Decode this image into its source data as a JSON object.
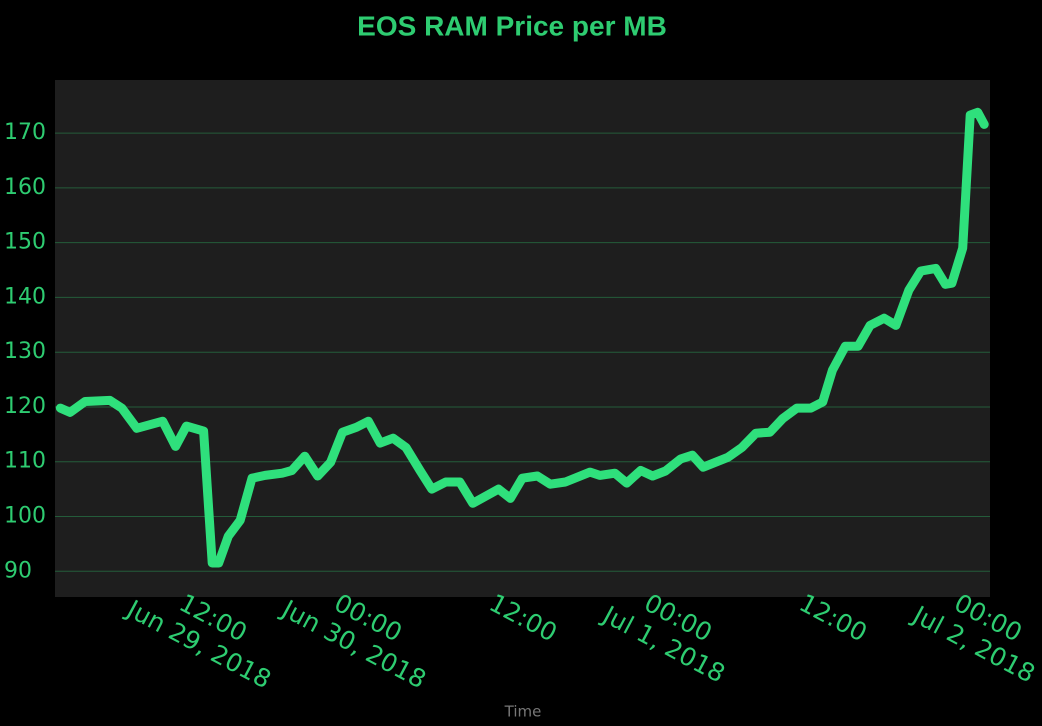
{
  "chart_data": {
    "type": "line",
    "title": "EOS RAM Price per MB",
    "x_label": "Time",
    "x": [
      "2018-06-29 00:15",
      "2018-06-29 01:00",
      "2018-06-29 02:10",
      "2018-06-29 04:05",
      "2018-06-29 05:00",
      "2018-06-29 06:10",
      "2018-06-29 08:10",
      "2018-06-29 09:10",
      "2018-06-29 10:00",
      "2018-06-29 11:20",
      "2018-06-29 12:00",
      "2018-06-29 12:30",
      "2018-06-29 13:15",
      "2018-06-29 14:10",
      "2018-06-29 15:05",
      "2018-06-29 16:05",
      "2018-06-29 17:25",
      "2018-06-29 18:10",
      "2018-06-29 19:10",
      "2018-06-29 20:10",
      "2018-06-29 21:10",
      "2018-06-29 22:05",
      "2018-06-29 23:10",
      "2018-06-30 00:05",
      "2018-06-30 01:00",
      "2018-06-30 02:00",
      "2018-06-30 03:00",
      "2018-06-30 04:05",
      "2018-06-30 05:00",
      "2018-06-30 06:05",
      "2018-06-30 07:10",
      "2018-06-30 08:10",
      "2018-06-30 10:10",
      "2018-06-30 11:05",
      "2018-06-30 12:00",
      "2018-06-30 13:10",
      "2018-06-30 14:10",
      "2018-06-30 15:20",
      "2018-06-30 17:15",
      "2018-06-30 18:00",
      "2018-06-30 19:10",
      "2018-06-30 20:05",
      "2018-06-30 21:10",
      "2018-06-30 22:05",
      "2018-06-30 23:05",
      "2018-07-01 00:15",
      "2018-07-01 01:10",
      "2018-07-01 02:00",
      "2018-07-01 03:55",
      "2018-07-01 05:00",
      "2018-07-01 06:05",
      "2018-07-01 07:10",
      "2018-07-01 08:10",
      "2018-07-01 09:15",
      "2018-07-01 10:20",
      "2018-07-01 11:15",
      "2018-07-01 12:00",
      "2018-07-01 13:00",
      "2018-07-01 14:00",
      "2018-07-01 14:55",
      "2018-07-01 16:00",
      "2018-07-01 16:55",
      "2018-07-01 17:55",
      "2018-07-01 18:50",
      "2018-07-01 20:00",
      "2018-07-01 20:45",
      "2018-07-01 21:15",
      "2018-07-01 22:05",
      "2018-07-01 22:40",
      "2018-07-01 23:15",
      "2018-07-01 23:45"
    ],
    "series": [
      {
        "name": "EOS RAM Price per MB",
        "color": "#2fe07c",
        "values": [
          119.8,
          119,
          121,
          121.2,
          119.8,
          116.1,
          117.4,
          112.8,
          116.5,
          115.6,
          91.5,
          91.5,
          96.4,
          99.3,
          107,
          107.5,
          107.9,
          108.4,
          111,
          107.4,
          109.9,
          115.4,
          116.3,
          117.4,
          113.4,
          114.3,
          112.6,
          108.4,
          105,
          106.3,
          106.3,
          102.4,
          105,
          103.3,
          107,
          107.4,
          105.9,
          106.3,
          108.1,
          107.5,
          107.9,
          106.1,
          108.4,
          107.4,
          108.3,
          110.5,
          111.2,
          109,
          110.8,
          112.6,
          115.2,
          115.4,
          117.9,
          119.8,
          119.8,
          120.9,
          126.7,
          131.1,
          131.1,
          134.9,
          136.2,
          134.9,
          141.3,
          144.8,
          145.3,
          142.4,
          142.6,
          149,
          173.3,
          173.8,
          171.6
        ]
      }
    ],
    "xlim": [
      "2018-06-28 23:50",
      "2018-07-02 00:12"
    ],
    "xticks": [
      {
        "value": "2018-06-29 12:00",
        "label": "12:00\nJun 29, 2018"
      },
      {
        "value": "2018-06-30 00:00",
        "label": "00:00\nJun 30, 2018"
      },
      {
        "value": "2018-06-30 12:00",
        "label": "12:00"
      },
      {
        "value": "2018-07-01 00:00",
        "label": "00:00\nJul 1, 2018"
      },
      {
        "value": "2018-07-01 12:00",
        "label": "12:00"
      },
      {
        "value": "2018-07-02 00:00",
        "label": "00:00\nJul 2, 2018"
      }
    ],
    "ylim": [
      85.3,
      179.7
    ],
    "yticks": [
      90,
      100,
      110,
      120,
      130,
      140,
      150,
      160,
      170
    ],
    "grid": true
  }
}
